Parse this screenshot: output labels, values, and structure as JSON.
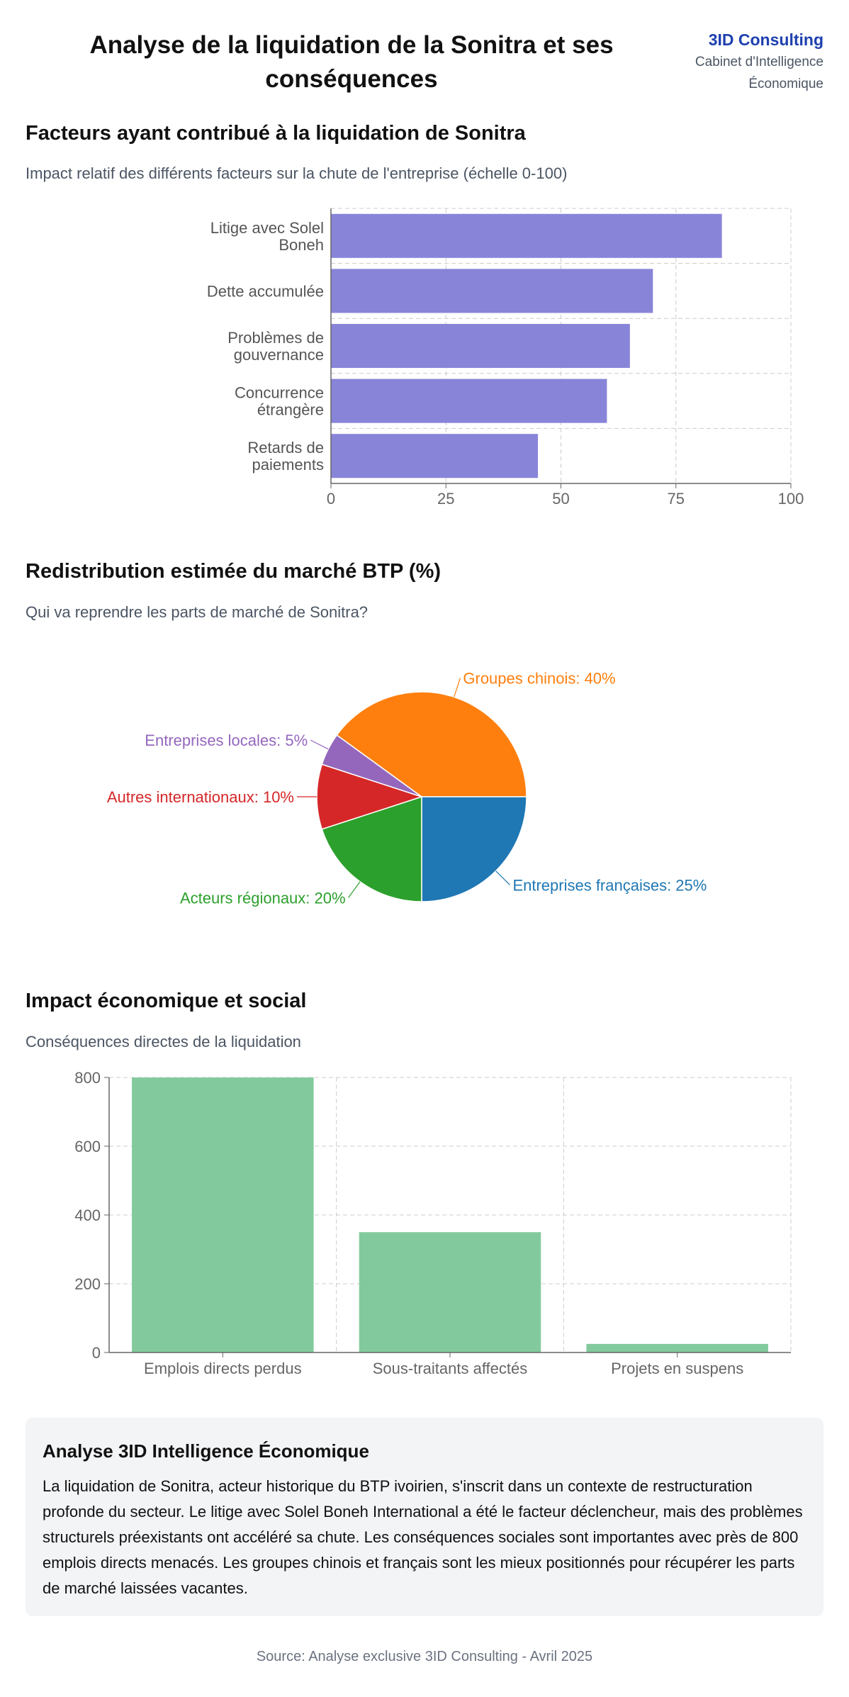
{
  "header": {
    "title": "Analyse de la liquidation de la Sonitra et ses conséquences",
    "brand_name": "3ID Consulting",
    "brand_sub": "Cabinet d'Intelligence Économique"
  },
  "section1": {
    "title": "Facteurs ayant contribué à la liquidation de Sonitra",
    "subtitle": "Impact relatif des différents facteurs sur la chute de l'entreprise (échelle 0-100)"
  },
  "section2": {
    "title": "Redistribution estimée du marché BTP (%)",
    "subtitle": "Qui va reprendre les parts de marché de Sonitra?"
  },
  "section3": {
    "title": "Impact économique et social",
    "subtitle": "Conséquences directes de la liquidation"
  },
  "analysis": {
    "title": "Analyse 3ID Intelligence Économique",
    "text": "La liquidation de Sonitra, acteur historique du BTP ivoirien, s'inscrit dans un contexte de restructuration profonde du secteur. Le litige avec Solel Boneh International a été le facteur déclencheur, mais des problèmes structurels préexistants ont accéléré sa chute. Les conséquences sociales sont importantes avec près de 800 emplois directs menacés. Les groupes chinois et français sont les mieux positionnés pour récupérer les parts de marché laissées vacantes."
  },
  "footer": {
    "source": "Source: Analyse exclusive 3ID Consulting - Avril 2025"
  },
  "chart_data": [
    {
      "type": "bar",
      "orientation": "horizontal",
      "categories": [
        [
          "Litige avec Solel",
          "Boneh"
        ],
        [
          "Dette accumulée"
        ],
        [
          "Problèmes de",
          "gouvernance"
        ],
        [
          "Concurrence",
          "étrangère"
        ],
        [
          "Retards de",
          "paiements"
        ]
      ],
      "values": [
        85,
        70,
        65,
        60,
        45
      ],
      "xlim": [
        0,
        100
      ],
      "xticks": [
        0,
        25,
        50,
        75,
        100
      ],
      "color": "#8884d8",
      "grid": true
    },
    {
      "type": "pie",
      "slices": [
        {
          "label": "Groupes chinois",
          "value": 40,
          "color": "#ff7f0e"
        },
        {
          "label": "Entreprises françaises",
          "value": 25,
          "color": "#1f77b4"
        },
        {
          "label": "Acteurs régionaux",
          "value": 20,
          "color": "#2ca02c"
        },
        {
          "label": "Autres internationaux",
          "value": 10,
          "color": "#d62728"
        },
        {
          "label": "Entreprises locales",
          "value": 5,
          "color": "#9467bd"
        }
      ]
    },
    {
      "type": "bar",
      "orientation": "vertical",
      "categories": [
        "Emplois directs perdus",
        "Sous-traitants affectés",
        "Projets en suspens"
      ],
      "values": [
        800,
        350,
        25
      ],
      "ylim": [
        0,
        800
      ],
      "yticks": [
        0,
        200,
        400,
        600,
        800
      ],
      "color": "#82ca9d",
      "grid": true
    }
  ]
}
